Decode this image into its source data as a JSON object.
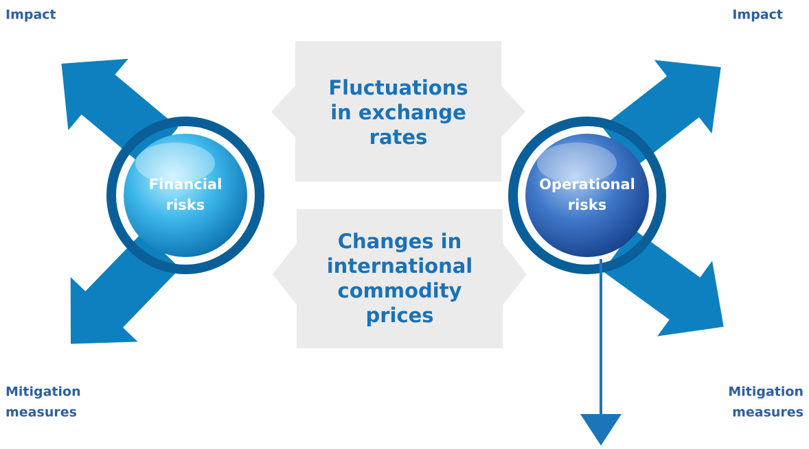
{
  "spheres": [
    {
      "lines": [
        "Financial",
        "risks"
      ]
    },
    {
      "lines": [
        "Operational",
        "risks"
      ]
    }
  ],
  "factors": [
    {
      "lines": [
        "Fluctuations",
        "in exchange",
        "rates"
      ]
    },
    {
      "lines": [
        "Changes in",
        "international",
        "commodity",
        "prices"
      ]
    }
  ],
  "labels": [
    {
      "lines": [
        "Impact"
      ]
    },
    {
      "lines": [
        "Impact"
      ]
    },
    {
      "lines": [
        "Mitigation",
        "measures"
      ]
    },
    {
      "lines": [
        "Mitigation",
        "measures"
      ]
    }
  ]
}
